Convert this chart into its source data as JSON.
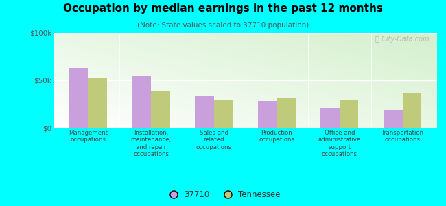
{
  "title": "Occupation by median earnings in the past 12 months",
  "subtitle": "(Note: State values scaled to 37710 population)",
  "categories": [
    "Management\noccupations",
    "Installation,\nmaintenance,\nand repair\noccupations",
    "Sales and\nrelated\noccupations",
    "Production\noccupations",
    "Office and\nadministrative\nsupport\noccupations",
    "Transportation\noccupations"
  ],
  "values_37710": [
    63000,
    55000,
    33000,
    28000,
    20000,
    19000
  ],
  "values_tennessee": [
    53000,
    39000,
    29000,
    32000,
    30000,
    36000
  ],
  "color_37710": "#c9a0dc",
  "color_tennessee": "#bfcb7a",
  "ylim": [
    0,
    100000
  ],
  "yticks": [
    0,
    50000,
    100000
  ],
  "ytick_labels": [
    "$0",
    "$50k",
    "$100k"
  ],
  "background_color": "#00ffff",
  "legend_37710": "37710",
  "legend_tennessee": "Tennessee",
  "bar_width": 0.3
}
